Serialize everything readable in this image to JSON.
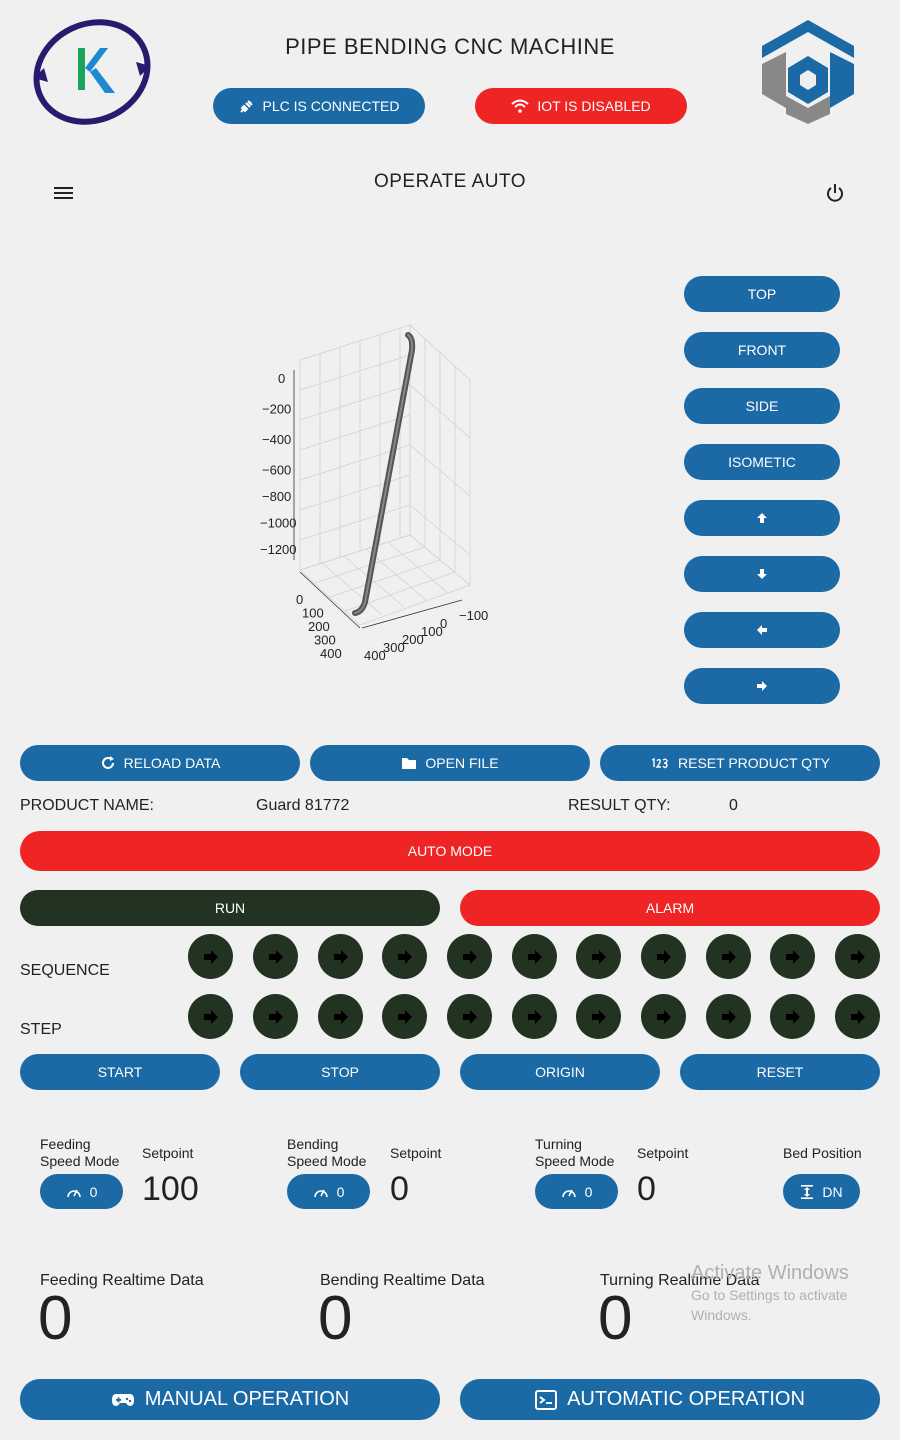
{
  "header": {
    "title": "PIPE BENDING CNC MACHINE",
    "plc_status": "PLC IS CONNECTED",
    "iot_status": "IOT IS DISABLED"
  },
  "toolbar": {
    "page_title": "OPERATE AUTO"
  },
  "view_buttons": [
    "TOP",
    "FRONT",
    "SIDE",
    "ISOMETIC"
  ],
  "plot": {
    "z_ticks": [
      "0",
      "−200",
      "−400",
      "−600",
      "−800",
      "−1000",
      "−1200"
    ],
    "x_ticks": [
      "0",
      "100",
      "200",
      "300",
      "400"
    ],
    "y_ticks": [
      "400",
      "300",
      "200",
      "100",
      "0",
      "−100"
    ]
  },
  "actions": {
    "reload": "RELOAD DATA",
    "open_file": "OPEN FILE",
    "reset_qty": "RESET PRODUCT QTY"
  },
  "product": {
    "name_label": "PRODUCT NAME:",
    "name_value": "Guard 81772",
    "qty_label": "RESULT QTY:",
    "qty_value": "0"
  },
  "mode_bar": "AUTO MODE",
  "run_label": "RUN",
  "alarm_label": "ALARM",
  "sequence_label": "SEQUENCE",
  "step_label": "STEP",
  "controls": [
    "START",
    "STOP",
    "ORIGIN",
    "RESET"
  ],
  "speed": {
    "feeding_mode_label_1": "Feeding",
    "feeding_mode_label_2": "Speed Mode",
    "feeding_mode_value": "0",
    "feeding_setpoint_label": "Setpoint",
    "feeding_setpoint_value": "100",
    "bending_mode_label_1": "Bending",
    "bending_mode_label_2": "Speed Mode",
    "bending_mode_value": "0",
    "bending_setpoint_label": "Setpoint",
    "bending_setpoint_value": "0",
    "turning_mode_label_1": "Turning",
    "turning_mode_label_2": "Speed Mode",
    "turning_mode_value": "0",
    "turning_setpoint_label": "Setpoint",
    "turning_setpoint_value": "0",
    "bed_label": "Bed Position",
    "bed_value": "DN"
  },
  "realtime": {
    "feeding_label": "Feeding Realtime Data",
    "feeding_value": "0",
    "bending_label": "Bending Realtime Data",
    "bending_value": "0",
    "turning_label": "Turning Realtime Data",
    "turning_value": "0"
  },
  "watermark": {
    "line1": "Activate Windows",
    "line2": "Go to Settings to activate",
    "line3": "Windows."
  },
  "bottom": {
    "manual": "MANUAL OPERATION",
    "automatic": "AUTOMATIC OPERATION"
  },
  "colors": {
    "primary": "#1b6aa6",
    "alert": "#ef2424",
    "dark": "#223322",
    "background": "#f0f0f0"
  }
}
